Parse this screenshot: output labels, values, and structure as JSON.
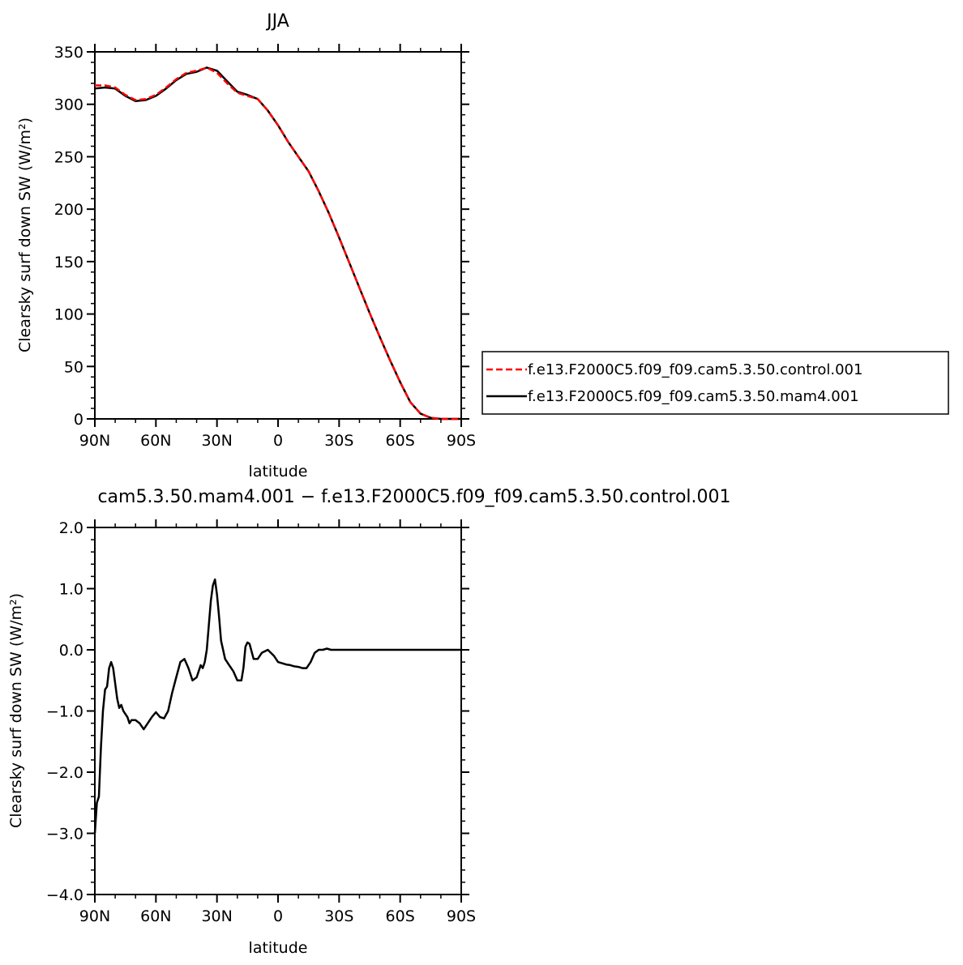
{
  "chart_data": [
    {
      "type": "line",
      "title": "JJA",
      "xlabel": "latitude",
      "ylabel": "Clearsky surf down SW (W/m²)",
      "x_ticks": [
        90,
        60,
        30,
        0,
        -30,
        -60,
        -90
      ],
      "x_tick_labels": [
        "90N",
        "60N",
        "30N",
        "0",
        "30S",
        "60S",
        "90S"
      ],
      "xlim": [
        90,
        -90
      ],
      "ylim": [
        0,
        350
      ],
      "y_ticks": [
        0,
        50,
        100,
        150,
        200,
        250,
        300,
        350
      ],
      "y_tick_labels": [
        "0",
        "50",
        "100",
        "150",
        "200",
        "250",
        "300",
        "350"
      ],
      "legend": {
        "placement": "right",
        "entries": [
          {
            "label": "f.e13.F2000C5.f09_f09.cam5.3.50.control.001",
            "color": "#ff0000",
            "dash": "dashed"
          },
          {
            "label": "f.e13.F2000C5.f09_f09.cam5.3.50.mam4.001",
            "color": "#000000",
            "dash": "solid"
          }
        ]
      },
      "series": [
        {
          "name": "f.e13.F2000C5.f09_f09.cam5.3.50.control.001",
          "color": "#ff0000",
          "dash": "dashed",
          "x": [
            90,
            85,
            80,
            75,
            70,
            65,
            60,
            55,
            50,
            45,
            40,
            35,
            30,
            25,
            20,
            15,
            10,
            5,
            0,
            -5,
            -10,
            -15,
            -20,
            -25,
            -30,
            -35,
            -40,
            -45,
            -50,
            -55,
            -60,
            -65,
            -70,
            -75,
            -80,
            -85,
            -90
          ],
          "y": [
            318,
            318,
            316,
            309,
            304,
            305,
            309,
            316,
            324,
            330,
            332,
            335,
            330,
            320,
            311,
            308,
            305,
            294,
            280,
            264,
            250,
            236,
            217,
            196,
            173,
            149,
            125,
            101,
            78,
            56,
            35,
            16,
            5,
            1,
            0,
            0,
            0
          ]
        },
        {
          "name": "f.e13.F2000C5.f09_f09.cam5.3.50.mam4.001",
          "color": "#000000",
          "dash": "solid",
          "x": [
            90,
            85,
            80,
            75,
            70,
            65,
            60,
            55,
            50,
            45,
            40,
            35,
            30,
            25,
            20,
            15,
            10,
            5,
            0,
            -5,
            -10,
            -15,
            -20,
            -25,
            -30,
            -35,
            -40,
            -45,
            -50,
            -55,
            -60,
            -65,
            -70,
            -75,
            -80,
            -85,
            -90
          ],
          "y": [
            315,
            316,
            315,
            308,
            303,
            304,
            308,
            315,
            323,
            329,
            331,
            335,
            332,
            322,
            312,
            309,
            305,
            294,
            280,
            264,
            250,
            236,
            217,
            196,
            173,
            149,
            125,
            101,
            78,
            56,
            35,
            16,
            5,
            1,
            0,
            0,
            0
          ]
        }
      ]
    },
    {
      "type": "line",
      "title": "cam5.3.50.mam4.001 − f.e13.F2000C5.f09_f09.cam5.3.50.control.001",
      "xlabel": "latitude",
      "ylabel": "Clearsky surf down SW (W/m²)",
      "x_ticks": [
        90,
        60,
        30,
        0,
        -30,
        -60,
        -90
      ],
      "x_tick_labels": [
        "90N",
        "60N",
        "30N",
        "0",
        "30S",
        "60S",
        "90S"
      ],
      "xlim": [
        90,
        -90
      ],
      "ylim": [
        -4.0,
        2.0
      ],
      "y_ticks": [
        -4,
        -3,
        -2,
        -1,
        0,
        1,
        2
      ],
      "y_tick_labels": [
        "−4.0",
        "−3.0",
        "−2.0",
        "−1.0",
        "0.0",
        "1.0",
        "2.0"
      ],
      "series": [
        {
          "color": "#000000",
          "dash": "solid",
          "x": [
            90,
            89,
            88,
            87,
            86,
            85,
            84,
            83,
            82,
            81,
            80,
            79,
            78,
            77,
            76,
            75,
            74,
            73,
            72,
            71,
            70,
            68,
            66,
            64,
            62,
            60,
            58,
            56,
            54,
            52,
            50,
            48,
            46,
            44,
            42,
            40,
            38,
            37,
            36,
            35,
            34,
            33,
            32,
            31,
            30,
            29,
            28,
            26,
            24,
            22,
            20,
            18,
            17,
            16,
            15,
            14,
            12,
            10,
            8,
            5,
            2,
            0,
            -2,
            -4,
            -6,
            -8,
            -10,
            -12,
            -14,
            -16,
            -18,
            -20,
            -22,
            -24,
            -26,
            -28,
            -30,
            -33,
            -36,
            -40,
            -44,
            -48,
            -50,
            -52,
            -55,
            -58,
            -60,
            -62,
            -65,
            -70,
            -75,
            -80,
            -85,
            -90
          ],
          "y": [
            -3.0,
            -2.5,
            -2.4,
            -1.6,
            -1.0,
            -0.65,
            -0.6,
            -0.3,
            -0.2,
            -0.3,
            -0.55,
            -0.8,
            -0.95,
            -0.9,
            -1.0,
            -1.05,
            -1.1,
            -1.2,
            -1.15,
            -1.15,
            -1.15,
            -1.2,
            -1.3,
            -1.2,
            -1.1,
            -1.02,
            -1.1,
            -1.12,
            -1.0,
            -0.7,
            -0.45,
            -0.2,
            -0.15,
            -0.3,
            -0.5,
            -0.45,
            -0.25,
            -0.3,
            -0.2,
            0.0,
            0.4,
            0.8,
            1.05,
            1.15,
            0.9,
            0.55,
            0.15,
            -0.15,
            -0.25,
            -0.35,
            -0.5,
            -0.5,
            -0.3,
            0.05,
            0.12,
            0.1,
            -0.15,
            -0.15,
            -0.05,
            0.0,
            -0.1,
            -0.2,
            -0.22,
            -0.24,
            -0.25,
            -0.27,
            -0.28,
            -0.3,
            -0.3,
            -0.2,
            -0.05,
            0.0,
            0.0,
            0.02,
            0.0,
            0.0,
            0.0,
            0.0,
            0.0,
            0.0,
            0.0,
            0.0,
            0.0,
            0.0,
            0.0,
            0.0,
            0.0,
            0.0,
            0.0,
            0.0,
            0.0,
            0.0,
            0.0,
            0.0
          ]
        }
      ]
    }
  ]
}
